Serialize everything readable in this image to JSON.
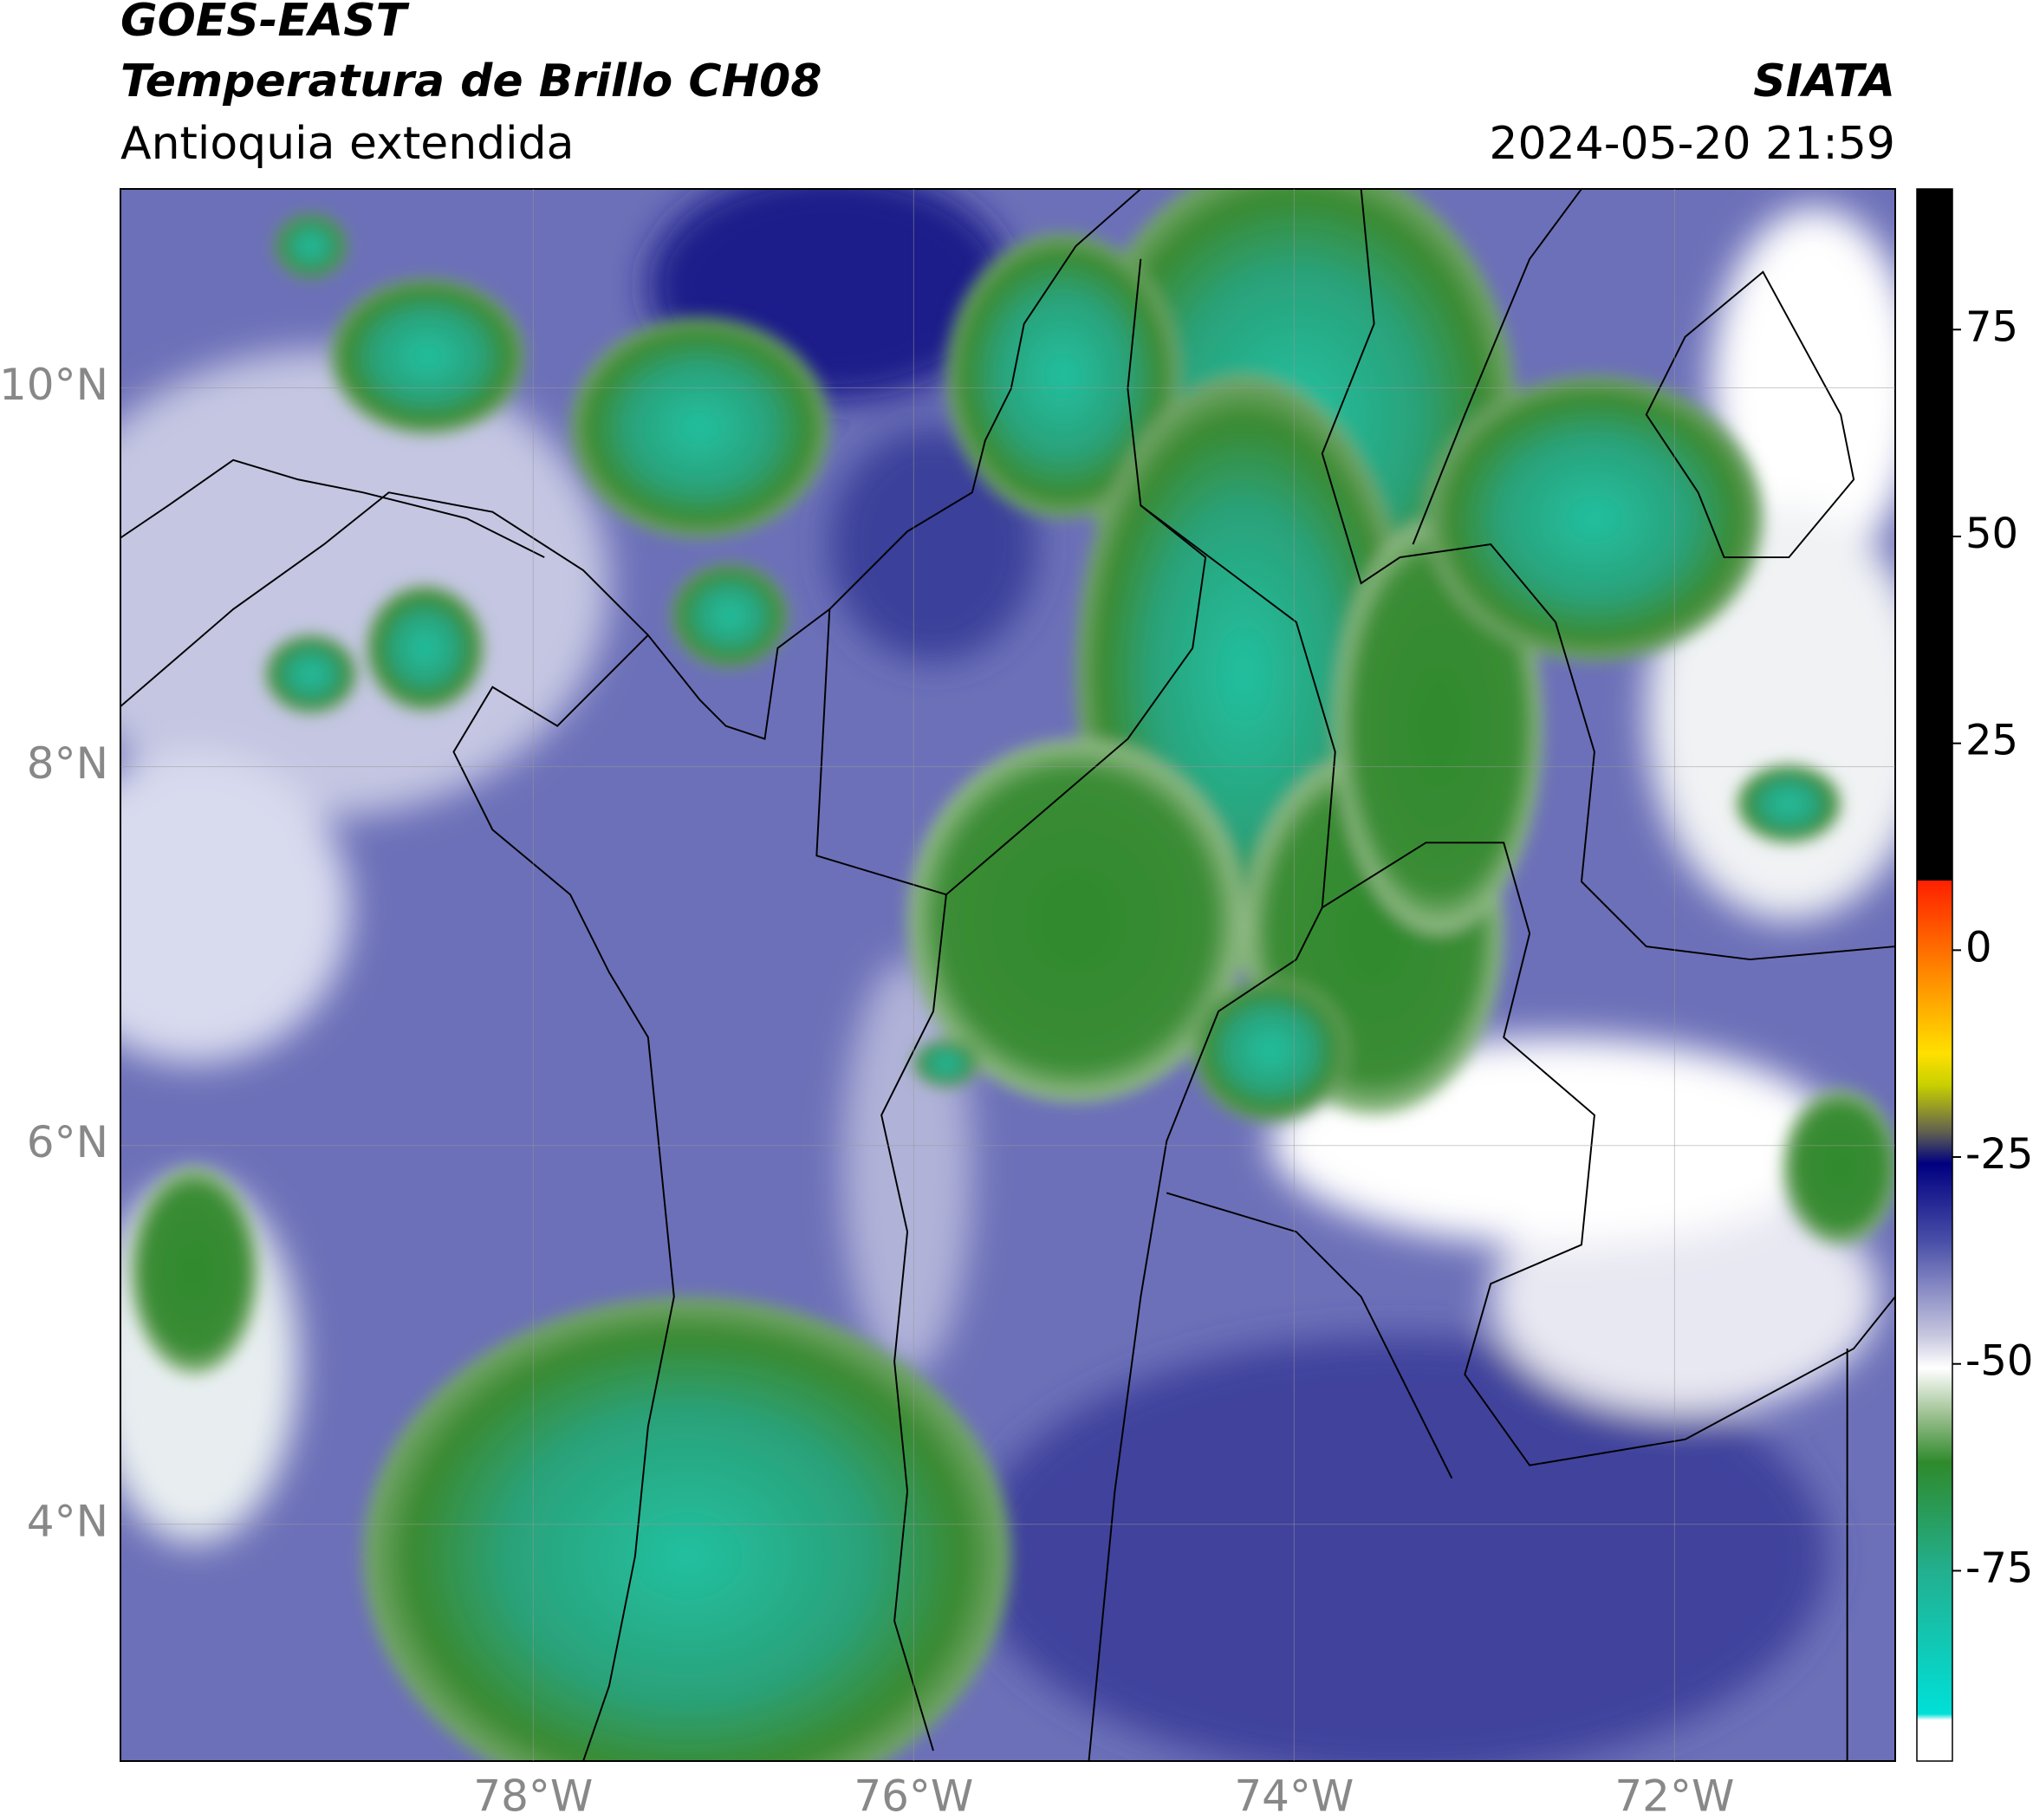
{
  "header": {
    "title": "GOES-EAST",
    "subtitle": "Temperatura de Brillo CH08",
    "region": "Antioquia extendida",
    "source": "SIATA",
    "datetime": "2024-05-20 21:59"
  },
  "map": {
    "xlim": [
      -80.17,
      -70.84
    ],
    "ylim": [
      2.75,
      11.05
    ],
    "xticks": [
      {
        "value": -78,
        "label": "78°W"
      },
      {
        "value": -76,
        "label": "76°W"
      },
      {
        "value": -74,
        "label": "74°W"
      },
      {
        "value": -72,
        "label": "72°W"
      }
    ],
    "yticks": [
      {
        "value": 4,
        "label": "4°N"
      },
      {
        "value": 6,
        "label": "6°N"
      },
      {
        "value": 8,
        "label": "8°N"
      },
      {
        "value": 10,
        "label": "10°N"
      }
    ],
    "grid": true
  },
  "colorbar": {
    "lim": [
      -98,
      92
    ],
    "ticks": [
      -75,
      -50,
      -25,
      0,
      25,
      50,
      75
    ]
  }
}
